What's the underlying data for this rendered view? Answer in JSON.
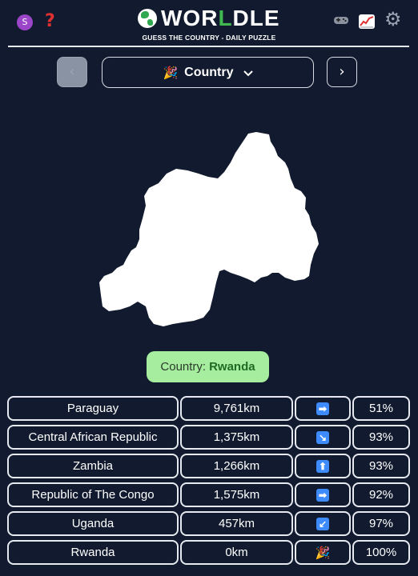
{
  "header": {
    "avatar_initial": "S",
    "logo_prefix": "WOR",
    "logo_green": "L",
    "logo_suffix": "DLE",
    "tagline": "GUESS THE COUNTRY - DAILY PUZZLE",
    "icons": [
      "help-icon",
      "gamepad-icon",
      "chart-icon",
      "gear-icon"
    ]
  },
  "nav": {
    "prev_symbol": "‹",
    "next_symbol": "›",
    "select_icon": "🎉",
    "select_label": "Country",
    "select_chevron": "⌄"
  },
  "answer": {
    "prefix": "Country:",
    "country": "Rwanda"
  },
  "guesses": [
    {
      "name": "Paraguay",
      "distance": "9,761km",
      "direction": "➡",
      "percent": "51%"
    },
    {
      "name": "Central African Republic",
      "distance": "1,375km",
      "direction": "↘",
      "percent": "93%"
    },
    {
      "name": "Zambia",
      "distance": "1,266km",
      "direction": "⬆",
      "percent": "93%"
    },
    {
      "name": "Republic of The Congo",
      "distance": "1,575km",
      "direction": "➡",
      "percent": "92%"
    },
    {
      "name": "Uganda",
      "distance": "457km",
      "direction": "↙",
      "percent": "97%"
    },
    {
      "name": "Rwanda",
      "distance": "0km",
      "direction": "🎉",
      "percent": "100%"
    }
  ],
  "colors": {
    "background": "#111a2e",
    "answer_bg": "#a6ed9f",
    "arrow_bg": "#3d8bfd",
    "accent_green": "#3fb950"
  }
}
